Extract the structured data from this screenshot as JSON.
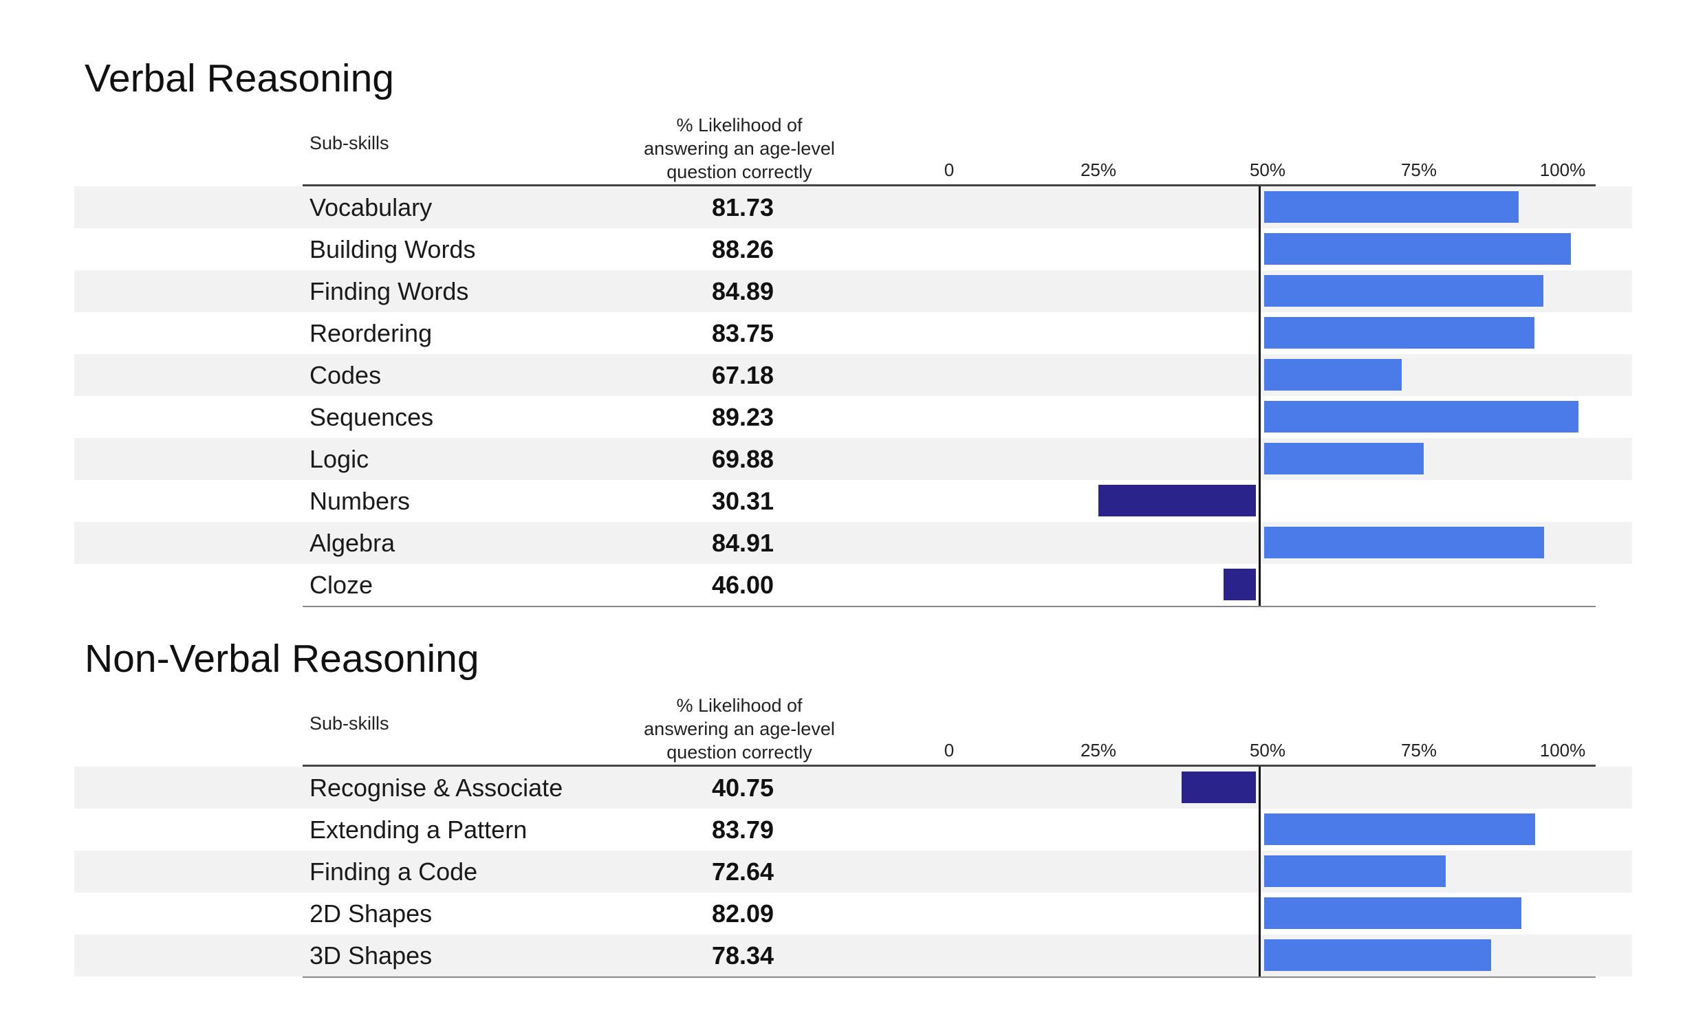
{
  "colors": {
    "above_50": "#4a7be9",
    "below_50": "#2a238c"
  },
  "chart_data": [
    {
      "type": "bar",
      "title": "Verbal Reasoning",
      "category_header": "Sub-skills",
      "value_header": [
        "% Likelihood of",
        "answering an age-level",
        "question correctly"
      ],
      "ticks": [
        "0",
        "25%",
        "50%",
        "75%",
        "100%"
      ],
      "xlim": [
        0,
        100
      ],
      "baseline": 50,
      "categories": [
        "Vocabulary",
        "Building Words",
        "Finding Words",
        "Reordering",
        "Codes",
        "Sequences",
        "Logic",
        "Numbers",
        "Algebra",
        "Cloze"
      ],
      "values": [
        81.73,
        88.26,
        84.89,
        83.75,
        67.18,
        89.23,
        69.88,
        30.31,
        84.91,
        46.0
      ],
      "value_labels": [
        "81.73",
        "88.26",
        "84.89",
        "83.75",
        "67.18",
        "89.23",
        "69.88",
        "30.31",
        "84.91",
        "46.00"
      ]
    },
    {
      "type": "bar",
      "title": "Non-Verbal Reasoning",
      "category_header": "Sub-skills",
      "value_header": [
        "% Likelihood of",
        "answering an age-level",
        "question correctly"
      ],
      "ticks": [
        "0",
        "25%",
        "50%",
        "75%",
        "100%"
      ],
      "xlim": [
        0,
        100
      ],
      "baseline": 50,
      "categories": [
        "Recognise & Associate",
        "Extending a Pattern",
        "Finding a Code",
        "2D Shapes",
        "3D Shapes"
      ],
      "values": [
        40.75,
        83.79,
        72.64,
        82.09,
        78.34
      ],
      "value_labels": [
        "40.75",
        "83.79",
        "72.64",
        "82.09",
        "78.34"
      ]
    }
  ]
}
